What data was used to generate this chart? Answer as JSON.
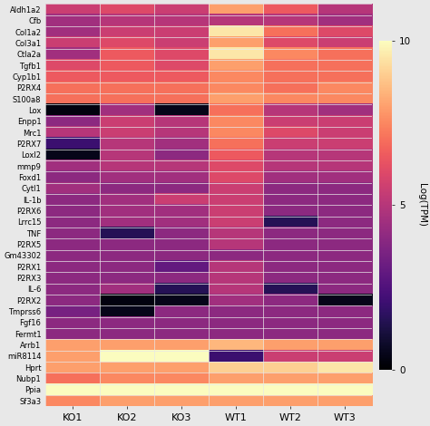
{
  "genes": [
    "Aldh1a2",
    "Cfb",
    "Col1a2",
    "Col3a1",
    "Ctla2a",
    "Tgfb1",
    "Cyp1b1",
    "P2RX4",
    "S100a8",
    "Lox",
    "Enpp1",
    "Mrc1",
    "P2RX7",
    "Loxl2",
    "mmp9",
    "Foxd1",
    "Cytl1",
    "IL-1b",
    "P2RX6",
    "Lrrc15",
    "TNF",
    "P2RX5",
    "Gm43302",
    "P2RX1",
    "P2RX3",
    "IL-6",
    "P2RX2",
    "Tmprss6",
    "Fgf16",
    "Fermt1",
    "Arrb1",
    "miR8114",
    "Hprt",
    "Nubp1",
    "Ppia",
    "Sf3a3"
  ],
  "samples": [
    "KO1",
    "KO2",
    "KO3",
    "WT1",
    "WT2",
    "WT3"
  ],
  "data": [
    [
      5.5,
      6.0,
      5.5,
      8.0,
      6.5,
      5.0
    ],
    [
      4.5,
      5.0,
      5.0,
      5.0,
      5.0,
      4.5
    ],
    [
      4.5,
      5.5,
      5.5,
      9.5,
      7.0,
      6.0
    ],
    [
      5.5,
      6.0,
      5.5,
      8.0,
      6.0,
      5.5
    ],
    [
      4.5,
      6.5,
      6.0,
      9.5,
      7.5,
      7.0
    ],
    [
      6.0,
      6.5,
      6.0,
      8.0,
      7.0,
      7.0
    ],
    [
      6.5,
      6.5,
      6.5,
      7.5,
      7.0,
      7.0
    ],
    [
      7.0,
      7.0,
      7.0,
      7.5,
      7.0,
      7.5
    ],
    [
      7.0,
      7.0,
      7.0,
      8.0,
      7.5,
      7.5
    ],
    [
      0.3,
      4.5,
      0.5,
      7.0,
      5.0,
      4.5
    ],
    [
      4.0,
      5.5,
      5.0,
      7.5,
      5.5,
      5.5
    ],
    [
      5.0,
      5.5,
      5.0,
      7.5,
      6.0,
      5.5
    ],
    [
      2.0,
      5.0,
      4.5,
      7.0,
      5.5,
      5.5
    ],
    [
      0.5,
      5.0,
      4.0,
      6.5,
      5.0,
      5.0
    ],
    [
      4.5,
      5.0,
      5.0,
      6.0,
      5.0,
      5.0
    ],
    [
      4.0,
      4.5,
      4.5,
      6.0,
      4.5,
      4.5
    ],
    [
      4.5,
      4.0,
      4.0,
      5.5,
      4.0,
      4.0
    ],
    [
      4.0,
      4.5,
      5.5,
      5.5,
      4.0,
      4.0
    ],
    [
      4.0,
      4.5,
      4.5,
      5.5,
      4.0,
      4.0
    ],
    [
      4.0,
      4.5,
      4.5,
      5.5,
      1.5,
      4.0
    ],
    [
      4.0,
      1.5,
      4.0,
      5.0,
      4.0,
      4.0
    ],
    [
      4.0,
      4.0,
      4.0,
      5.0,
      4.0,
      4.0
    ],
    [
      4.0,
      4.0,
      4.0,
      4.0,
      4.0,
      4.0
    ],
    [
      4.0,
      4.0,
      3.0,
      5.0,
      4.0,
      4.0
    ],
    [
      4.0,
      4.0,
      4.0,
      5.0,
      4.0,
      4.0
    ],
    [
      4.0,
      4.5,
      1.5,
      5.0,
      1.5,
      4.0
    ],
    [
      4.0,
      0.3,
      0.5,
      4.5,
      4.0,
      0.5
    ],
    [
      3.5,
      0.5,
      4.0,
      4.0,
      4.0,
      4.0
    ],
    [
      4.0,
      4.0,
      4.0,
      4.0,
      4.0,
      4.0
    ],
    [
      4.0,
      4.0,
      4.0,
      4.0,
      4.0,
      4.0
    ],
    [
      8.0,
      8.0,
      8.0,
      8.5,
      8.0,
      8.0
    ],
    [
      8.0,
      10.0,
      10.0,
      2.0,
      5.5,
      5.5
    ],
    [
      8.0,
      8.0,
      8.0,
      9.0,
      9.0,
      9.5
    ],
    [
      7.0,
      7.5,
      7.5,
      8.0,
      8.0,
      8.0
    ],
    [
      10.0,
      10.0,
      10.0,
      10.0,
      10.0,
      10.0
    ],
    [
      7.5,
      8.0,
      8.0,
      8.0,
      8.0,
      8.0
    ]
  ],
  "vmin": 0,
  "vmax": 10,
  "cmap": "magma",
  "colorbar_label": "Log(TPM)",
  "colorbar_ticks": [
    0,
    5,
    10
  ],
  "xlabel_fontsize": 8,
  "ylabel_fontsize": 6.0,
  "colorbar_fontsize": 7.5,
  "fig_width": 4.74,
  "fig_height": 4.7,
  "fig_bg": "#e8e8e8"
}
